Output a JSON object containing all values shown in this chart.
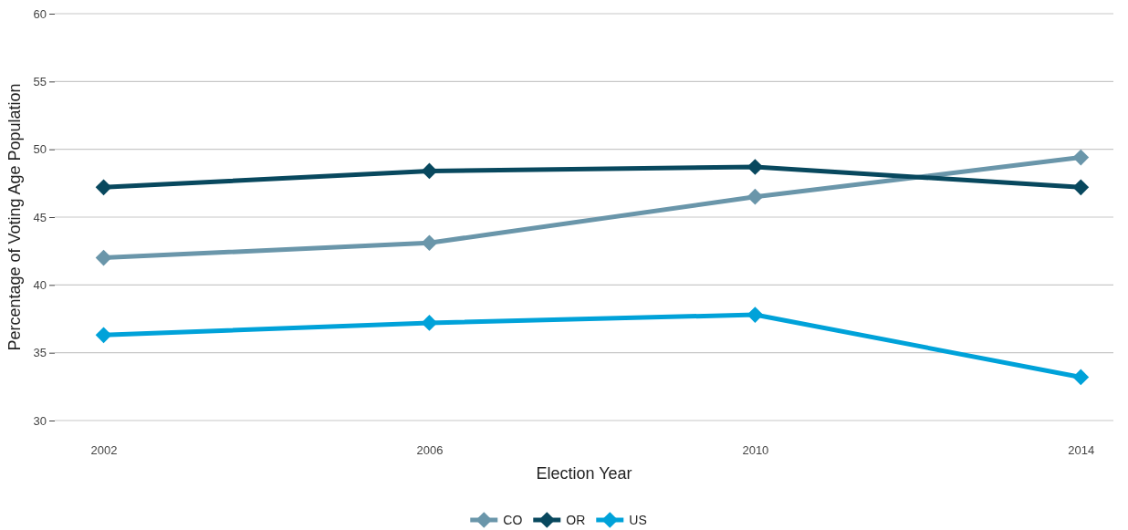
{
  "chart_data": {
    "type": "line",
    "xlabel": "Election Year",
    "ylabel": "Percentage of Voting Age Population",
    "x": [
      2002,
      2006,
      2010,
      2014
    ],
    "series": [
      {
        "name": "CO",
        "color": "#6a96aa",
        "values": [
          42.0,
          43.1,
          46.5,
          49.4
        ]
      },
      {
        "name": "OR",
        "color": "#08485e",
        "values": [
          47.2,
          48.4,
          48.7,
          47.2
        ]
      },
      {
        "name": "US",
        "color": "#00a2d9",
        "values": [
          36.3,
          37.2,
          37.8,
          33.2
        ]
      }
    ],
    "xlim": [
      2001.4,
      2014.4
    ],
    "xticks": [
      2002,
      2006,
      2010,
      2014
    ],
    "ylim": [
      30,
      60
    ],
    "yticks": [
      30,
      35,
      40,
      45,
      50,
      55,
      60
    ],
    "grid": "y",
    "legend": "bottom",
    "marker": "diamond",
    "line_style": "solid"
  }
}
